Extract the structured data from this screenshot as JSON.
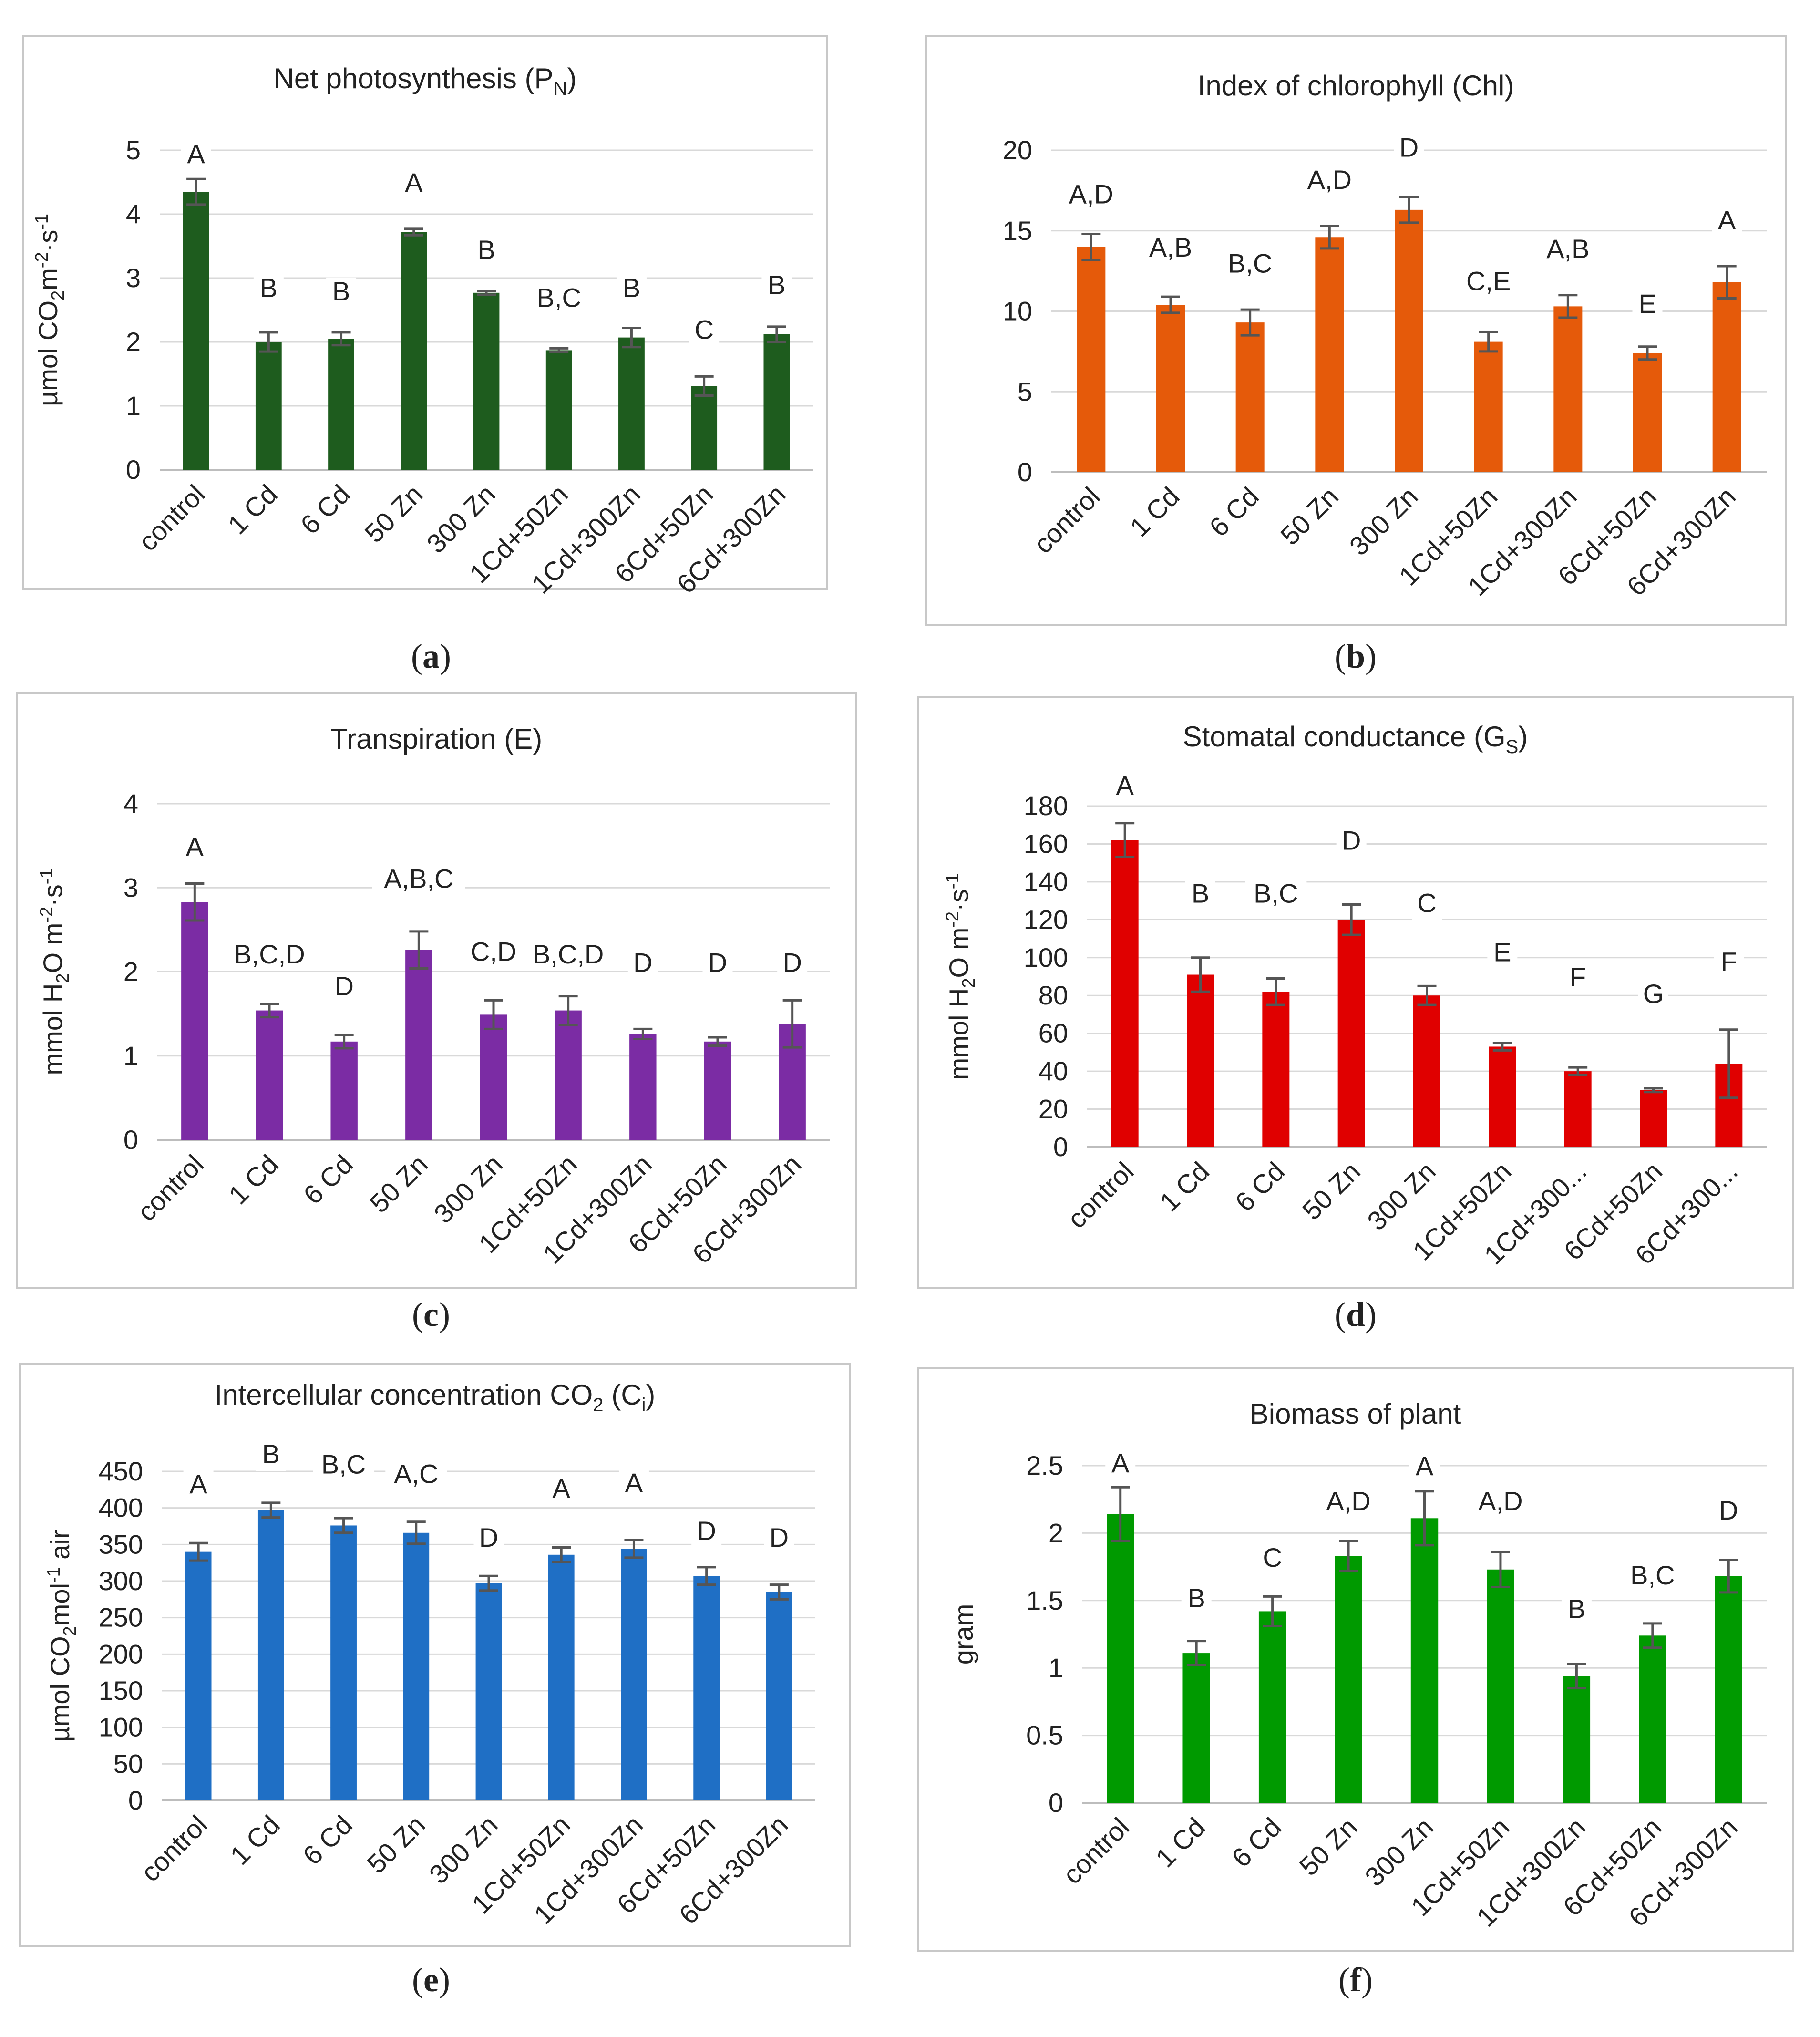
{
  "figure_title": "",
  "categories_default": [
    "control",
    "1 Cd",
    "6 Cd",
    "50 Zn",
    "300 Zn",
    "1Cd+50Zn",
    "1Cd+300Zn",
    "6Cd+50Zn",
    "6Cd+300Zn"
  ],
  "chart_data": [
    {
      "id": "a",
      "type": "bar",
      "title": "Net photosynthesis (P",
      "title_sub": "N",
      "title_end": ")",
      "ylabel_parts": [
        {
          "t": "µmol CO"
        },
        {
          "t": "2",
          "v": "sub"
        },
        {
          "t": "m"
        },
        {
          "t": "-2",
          "v": "sup"
        },
        {
          "t": "·s"
        },
        {
          "t": "-1",
          "v": "sup"
        }
      ],
      "caption": "a",
      "color": "#1e5c1e",
      "ylim": [
        0,
        5
      ],
      "ticks": [
        0,
        1,
        2,
        3,
        4,
        5
      ],
      "tick_labels": [
        "0",
        "1",
        "2",
        "3",
        "4",
        "5"
      ],
      "categories": [
        "control",
        "1 Cd",
        "6 Cd",
        "50 Zn",
        "300 Zn",
        "1Cd+50Zn",
        "1Cd+300Zn",
        "6Cd+50Zn",
        "6Cd+300Zn"
      ],
      "values": [
        4.35,
        2.0,
        2.05,
        3.72,
        2.77,
        1.87,
        2.07,
        1.31,
        2.12
      ],
      "errors": [
        0.2,
        0.15,
        0.1,
        0.05,
        0.03,
        0.03,
        0.15,
        0.15,
        0.12
      ],
      "letters": [
        "A",
        "B",
        "B",
        "A",
        "B",
        "B,C",
        "B",
        "C",
        "B"
      ],
      "letter_y": [
        4.8,
        2.7,
        2.65,
        4.35,
        3.3,
        2.55,
        2.7,
        2.05,
        2.75
      ]
    },
    {
      "id": "b",
      "type": "bar",
      "title": "Index of chlorophyll (Chl)",
      "title_sub": "",
      "title_end": "",
      "ylabel_parts": [],
      "caption": "b",
      "color": "#e55a0a",
      "ylim": [
        0,
        20
      ],
      "ticks": [
        0,
        5,
        10,
        15,
        20
      ],
      "tick_labels": [
        "0",
        "5",
        "10",
        "15",
        "20"
      ],
      "categories": [
        "control",
        "1 Cd",
        "6 Cd",
        "50 Zn",
        "300 Zn",
        "1Cd+50Zn",
        "1Cd+300Zn",
        "6Cd+50Zn",
        "6Cd+300Zn"
      ],
      "values": [
        14.0,
        10.4,
        9.3,
        14.6,
        16.3,
        8.1,
        10.3,
        7.4,
        11.8
      ],
      "errors": [
        0.8,
        0.5,
        0.8,
        0.7,
        0.8,
        0.6,
        0.7,
        0.4,
        1.0
      ],
      "letters": [
        "A,D",
        "A,B",
        "B,C",
        "A,D",
        "D",
        "C,E",
        "A,B",
        "E",
        "A"
      ],
      "letter_y": [
        16.7,
        13.4,
        12.4,
        17.6,
        19.6,
        11.3,
        13.3,
        9.9,
        15.1
      ]
    },
    {
      "id": "c",
      "type": "bar",
      "title": "Transpiration (E)",
      "title_sub": "",
      "title_end": "",
      "ylabel_parts": [
        {
          "t": "mmol H"
        },
        {
          "t": "2",
          "v": "sub"
        },
        {
          "t": "O m"
        },
        {
          "t": "-2",
          "v": "sup"
        },
        {
          "t": "·s"
        },
        {
          "t": "-1",
          "v": "sup"
        }
      ],
      "caption": "c",
      "color": "#7b2ca4",
      "ylim": [
        0,
        4
      ],
      "ticks": [
        0,
        1,
        2,
        3,
        4
      ],
      "tick_labels": [
        "0",
        "1",
        "2",
        "3",
        "4"
      ],
      "categories": [
        "control",
        "1 Cd",
        "6 Cd",
        "50 Zn",
        "300 Zn",
        "1Cd+50Zn",
        "1Cd+300Zn",
        "6Cd+50Zn",
        "6Cd+300Zn"
      ],
      "values": [
        2.83,
        1.54,
        1.17,
        2.26,
        1.49,
        1.54,
        1.26,
        1.17,
        1.38
      ],
      "errors": [
        0.22,
        0.08,
        0.08,
        0.22,
        0.17,
        0.17,
        0.06,
        0.05,
        0.28
      ],
      "letters": [
        "A",
        "B,C,D",
        "D",
        "A,B,C",
        "C,D",
        "B,C,D",
        "D",
        "D",
        "D"
      ],
      "letter_y": [
        3.38,
        2.1,
        1.72,
        3.0,
        2.13,
        2.1,
        2.0,
        2.0,
        2.0
      ]
    },
    {
      "id": "d",
      "type": "bar",
      "title": "Stomatal conductance (G",
      "title_sub": "S",
      "title_end": ")",
      "ylabel_parts": [
        {
          "t": "mmol H"
        },
        {
          "t": "2",
          "v": "sub"
        },
        {
          "t": "O m"
        },
        {
          "t": "-2",
          "v": "sup"
        },
        {
          "t": "·s"
        },
        {
          "t": "-1",
          "v": "sup"
        }
      ],
      "caption": "d",
      "color": "#e00000",
      "ylim": [
        0,
        180
      ],
      "ticks": [
        0,
        20,
        40,
        60,
        80,
        100,
        120,
        140,
        160,
        180
      ],
      "tick_labels": [
        "0",
        "20",
        "40",
        "60",
        "80",
        "100",
        "120",
        "140",
        "160",
        "180"
      ],
      "categories": [
        "control",
        "1 Cd",
        "6 Cd",
        "50 Zn",
        "300 Zn",
        "1Cd+50Zn",
        "1Cd+300...",
        "6Cd+50Zn",
        "6Cd+300..."
      ],
      "values": [
        162,
        91,
        82,
        120,
        80,
        53,
        40,
        30,
        44
      ],
      "errors": [
        9,
        9,
        7,
        8,
        5,
        2,
        2,
        1,
        18
      ],
      "letters": [
        "A",
        "B",
        "B,C",
        "D",
        "C",
        "E",
        "F",
        "G",
        "F"
      ],
      "letter_y": [
        186,
        129,
        129,
        157,
        124,
        98,
        85,
        76,
        93
      ]
    },
    {
      "id": "e",
      "type": "bar",
      "title": "Intercellular concentration CO",
      "title_sub": "2",
      "title_mid": " (C",
      "title_sub2": "i",
      "title_end": ")",
      "ylabel_parts": [
        {
          "t": "µmol CO"
        },
        {
          "t": "2",
          "v": "sub"
        },
        {
          "t": "mol"
        },
        {
          "t": "-1",
          "v": "sup"
        },
        {
          "t": " air"
        }
      ],
      "caption": "e",
      "color": "#1f6fc5",
      "ylim": [
        0,
        450
      ],
      "ticks": [
        0,
        50,
        100,
        150,
        200,
        250,
        300,
        350,
        400,
        450
      ],
      "tick_labels": [
        "0",
        "50",
        "100",
        "150",
        "200",
        "250",
        "300",
        "350",
        "400",
        "450"
      ],
      "categories": [
        "control",
        "1 Cd",
        "6 Cd",
        "50 Zn",
        "300 Zn",
        "1Cd+50Zn",
        "1Cd+300Zn",
        "6Cd+50Zn",
        "6Cd+300Zn"
      ],
      "values": [
        340,
        397,
        376,
        366,
        297,
        336,
        344,
        307,
        285
      ],
      "errors": [
        12,
        10,
        10,
        15,
        10,
        10,
        12,
        12,
        10
      ],
      "letters": [
        "A",
        "B",
        "B,C",
        "A,C",
        "D",
        "A",
        "A",
        "D",
        "D"
      ],
      "letter_y": [
        420,
        461,
        447,
        434,
        347,
        414,
        422,
        356,
        347
      ]
    },
    {
      "id": "f",
      "type": "bar",
      "title": "Biomass of plant",
      "title_sub": "",
      "title_end": "",
      "ylabel_parts": [
        {
          "t": "gram"
        }
      ],
      "caption": "f",
      "color": "#009a00",
      "ylim": [
        0,
        2.5
      ],
      "ticks": [
        0,
        0.5,
        1.0,
        1.5,
        2.0,
        2.5
      ],
      "tick_labels": [
        "0",
        "0.5",
        "1",
        "1.5",
        "2",
        "2.5"
      ],
      "categories": [
        "control",
        "1 Cd",
        "6 Cd",
        "50 Zn",
        "300 Zn",
        "1Cd+50Zn",
        "1Cd+300Zn",
        "6Cd+50Zn",
        "6Cd+300Zn"
      ],
      "values": [
        2.14,
        1.11,
        1.42,
        1.83,
        2.11,
        1.73,
        0.94,
        1.24,
        1.68
      ],
      "errors": [
        0.2,
        0.09,
        0.11,
        0.11,
        0.2,
        0.13,
        0.09,
        0.09,
        0.12
      ],
      "letters": [
        "A",
        "B",
        "C",
        "A,D",
        "A",
        "A,D",
        "B",
        "B,C",
        "D"
      ],
      "letter_y": [
        2.45,
        1.45,
        1.75,
        2.17,
        2.43,
        2.17,
        1.37,
        1.62,
        2.1
      ]
    }
  ]
}
